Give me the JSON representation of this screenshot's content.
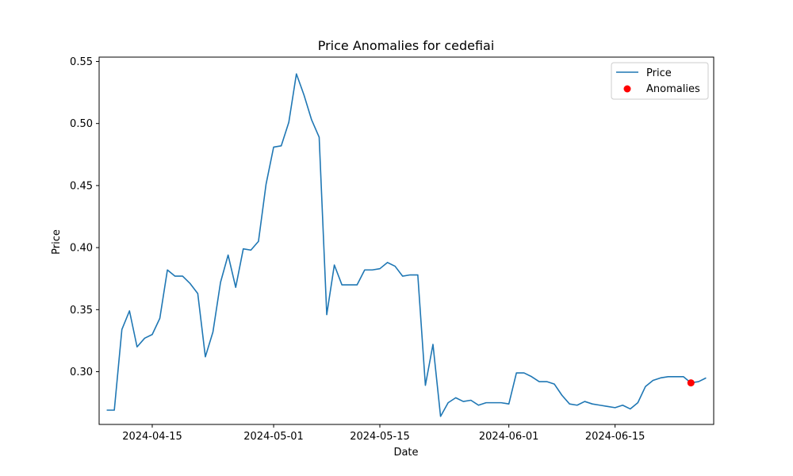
{
  "chart_data": {
    "type": "line",
    "title": "Price Anomalies for cedefiai",
    "xlabel": "Date",
    "ylabel": "Price",
    "xlim": [
      "2024-04-08",
      "2024-06-28"
    ],
    "ylim": [
      0.2575,
      0.5535
    ],
    "x_ticks": [
      "2024-04-15",
      "2024-05-01",
      "2024-05-15",
      "2024-06-01",
      "2024-06-15"
    ],
    "y_ticks": [
      0.3,
      0.35,
      0.4,
      0.45,
      0.5,
      0.55
    ],
    "y_tick_labels": [
      "0.30",
      "0.35",
      "0.40",
      "0.45",
      "0.50",
      "0.55"
    ],
    "grid": false,
    "legend_position": "top-right",
    "colors": {
      "price": "#1f77b4",
      "anomalies": "#ff0000"
    },
    "series": [
      {
        "name": "Price",
        "kind": "line",
        "points": [
          [
            "2024-04-09",
            0.269
          ],
          [
            "2024-04-10",
            0.269
          ],
          [
            "2024-04-11",
            0.334
          ],
          [
            "2024-04-12",
            0.349
          ],
          [
            "2024-04-13",
            0.32
          ],
          [
            "2024-04-14",
            0.327
          ],
          [
            "2024-04-15",
            0.33
          ],
          [
            "2024-04-16",
            0.343
          ],
          [
            "2024-04-17",
            0.382
          ],
          [
            "2024-04-18",
            0.377
          ],
          [
            "2024-04-19",
            0.377
          ],
          [
            "2024-04-20",
            0.371
          ],
          [
            "2024-04-21",
            0.363
          ],
          [
            "2024-04-22",
            0.312
          ],
          [
            "2024-04-23",
            0.332
          ],
          [
            "2024-04-24",
            0.372
          ],
          [
            "2024-04-25",
            0.394
          ],
          [
            "2024-04-26",
            0.368
          ],
          [
            "2024-04-27",
            0.399
          ],
          [
            "2024-04-28",
            0.398
          ],
          [
            "2024-04-29",
            0.405
          ],
          [
            "2024-04-30",
            0.451
          ],
          [
            "2024-05-01",
            0.481
          ],
          [
            "2024-05-02",
            0.482
          ],
          [
            "2024-05-03",
            0.501
          ],
          [
            "2024-05-04",
            0.54
          ],
          [
            "2024-05-05",
            0.523
          ],
          [
            "2024-05-06",
            0.503
          ],
          [
            "2024-05-07",
            0.489
          ],
          [
            "2024-05-08",
            0.346
          ],
          [
            "2024-05-09",
            0.386
          ],
          [
            "2024-05-10",
            0.37
          ],
          [
            "2024-05-11",
            0.37
          ],
          [
            "2024-05-12",
            0.37
          ],
          [
            "2024-05-13",
            0.382
          ],
          [
            "2024-05-14",
            0.382
          ],
          [
            "2024-05-15",
            0.383
          ],
          [
            "2024-05-16",
            0.388
          ],
          [
            "2024-05-17",
            0.385
          ],
          [
            "2024-05-18",
            0.377
          ],
          [
            "2024-05-19",
            0.378
          ],
          [
            "2024-05-20",
            0.378
          ],
          [
            "2024-05-21",
            0.289
          ],
          [
            "2024-05-22",
            0.322
          ],
          [
            "2024-05-23",
            0.264
          ],
          [
            "2024-05-24",
            0.275
          ],
          [
            "2024-05-25",
            0.279
          ],
          [
            "2024-05-26",
            0.276
          ],
          [
            "2024-05-27",
            0.277
          ],
          [
            "2024-05-28",
            0.273
          ],
          [
            "2024-05-29",
            0.275
          ],
          [
            "2024-05-30",
            0.275
          ],
          [
            "2024-05-31",
            0.275
          ],
          [
            "2024-06-01",
            0.274
          ],
          [
            "2024-06-02",
            0.299
          ],
          [
            "2024-06-03",
            0.299
          ],
          [
            "2024-06-04",
            0.296
          ],
          [
            "2024-06-05",
            0.292
          ],
          [
            "2024-06-06",
            0.292
          ],
          [
            "2024-06-07",
            0.29
          ],
          [
            "2024-06-08",
            0.281
          ],
          [
            "2024-06-09",
            0.274
          ],
          [
            "2024-06-10",
            0.273
          ],
          [
            "2024-06-11",
            0.276
          ],
          [
            "2024-06-12",
            0.274
          ],
          [
            "2024-06-13",
            0.273
          ],
          [
            "2024-06-14",
            0.272
          ],
          [
            "2024-06-15",
            0.271
          ],
          [
            "2024-06-16",
            0.273
          ],
          [
            "2024-06-17",
            0.27
          ],
          [
            "2024-06-18",
            0.275
          ],
          [
            "2024-06-19",
            0.288
          ],
          [
            "2024-06-20",
            0.293
          ],
          [
            "2024-06-21",
            0.295
          ],
          [
            "2024-06-22",
            0.296
          ],
          [
            "2024-06-23",
            0.296
          ],
          [
            "2024-06-24",
            0.296
          ],
          [
            "2024-06-25",
            0.291
          ],
          [
            "2024-06-26",
            0.292
          ],
          [
            "2024-06-27",
            0.295
          ]
        ]
      },
      {
        "name": "Anomalies",
        "kind": "scatter",
        "points": [
          [
            "2024-06-25",
            0.291
          ]
        ]
      }
    ]
  }
}
